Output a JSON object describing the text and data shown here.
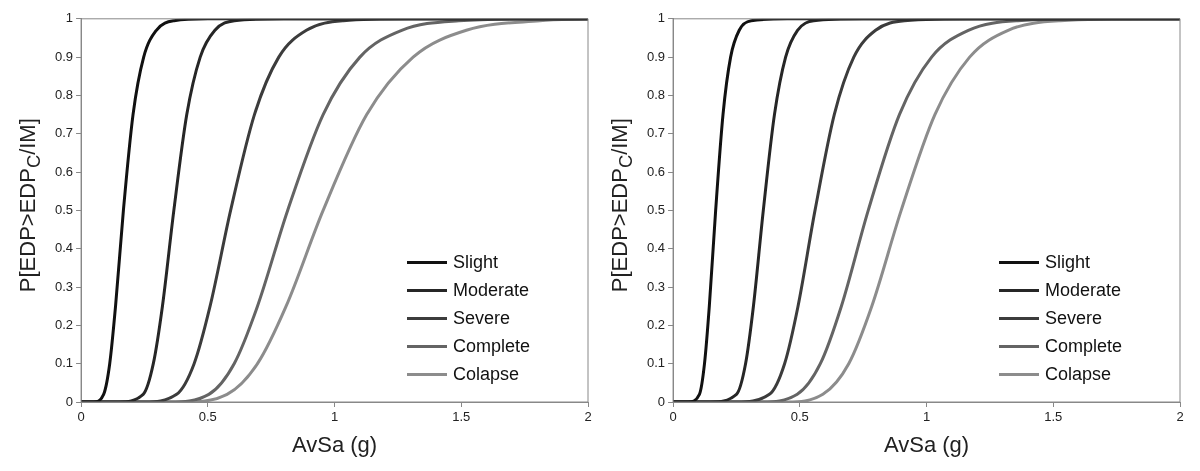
{
  "chart_data": [
    {
      "type": "line",
      "xlabel": "AvSa (g)",
      "ylabel": "P[EDP>EDP$_{C}$/IM]",
      "xlim": [
        0,
        2
      ],
      "ylim": [
        0,
        1
      ],
      "xticks": [
        0,
        0.5,
        1,
        1.5,
        2
      ],
      "yticks": [
        0,
        0.1,
        0.2,
        0.3,
        0.4,
        0.5,
        0.6,
        0.7,
        0.8,
        0.9,
        1
      ],
      "grid": false,
      "legend": "bottom right",
      "marker": "none",
      "line_style": "solid",
      "series": [
        {
          "name": "Slight",
          "color": "#111111",
          "x": [
            0,
            0.05,
            0.089,
            0.113,
            0.136,
            0.167,
            0.205,
            0.247,
            0.297,
            0.367,
            0.5,
            2
          ],
          "values": [
            0,
            0,
            0.02,
            0.1,
            0.25,
            0.5,
            0.75,
            0.9,
            0.97,
            0.995,
            1,
            1
          ]
        },
        {
          "name": "Moderate",
          "color": "#262626",
          "x": [
            0,
            0.15,
            0.245,
            0.285,
            0.321,
            0.366,
            0.417,
            0.47,
            0.528,
            0.605,
            0.8,
            2
          ],
          "values": [
            0,
            0,
            0.02,
            0.1,
            0.25,
            0.5,
            0.75,
            0.9,
            0.97,
            0.995,
            1,
            1
          ]
        },
        {
          "name": "Severe",
          "color": "#3c3c3c",
          "x": [
            0,
            0.25,
            0.377,
            0.446,
            0.509,
            0.59,
            0.684,
            0.78,
            0.889,
            1.035,
            1.3,
            2
          ],
          "values": [
            0,
            0,
            0.02,
            0.1,
            0.25,
            0.5,
            0.75,
            0.9,
            0.97,
            0.995,
            1,
            1
          ]
        },
        {
          "name": "Complete",
          "color": "#646464",
          "x": [
            0,
            0.35,
            0.504,
            0.604,
            0.696,
            0.815,
            0.955,
            1.1,
            1.265,
            1.49,
            1.8,
            2
          ],
          "values": [
            0,
            0,
            0.02,
            0.1,
            0.25,
            0.5,
            0.75,
            0.9,
            0.97,
            0.995,
            1,
            1
          ]
        },
        {
          "name": "Colapse",
          "color": "#8c8c8c",
          "x": [
            0,
            0.4,
            0.576,
            0.696,
            0.809,
            0.955,
            1.127,
            1.31,
            1.52,
            1.81,
            2
          ],
          "values": [
            0,
            0,
            0.02,
            0.1,
            0.25,
            0.5,
            0.75,
            0.9,
            0.97,
            0.995,
            1
          ]
        }
      ]
    },
    {
      "type": "line",
      "xlabel": "AvSa (g)",
      "ylabel": "P[EDP>EDP$_{C}$/IM]",
      "xlim": [
        0,
        2
      ],
      "ylim": [
        0,
        1
      ],
      "xticks": [
        0,
        0.5,
        1,
        1.5,
        2
      ],
      "yticks": [
        0,
        0.1,
        0.2,
        0.3,
        0.4,
        0.5,
        0.6,
        0.7,
        0.8,
        0.9,
        1
      ],
      "grid": false,
      "legend": "bottom right",
      "marker": "none",
      "line_style": "solid",
      "series": [
        {
          "name": "Slight",
          "color": "#111111",
          "x": [
            0,
            0.06,
            0.104,
            0.124,
            0.143,
            0.168,
            0.197,
            0.227,
            0.261,
            0.308,
            0.45,
            2
          ],
          "values": [
            0,
            0,
            0.02,
            0.1,
            0.25,
            0.5,
            0.75,
            0.9,
            0.97,
            0.995,
            1,
            1
          ]
        },
        {
          "name": "Moderate",
          "color": "#262626",
          "x": [
            0,
            0.15,
            0.25,
            0.286,
            0.317,
            0.356,
            0.4,
            0.444,
            0.491,
            0.555,
            0.75,
            2
          ],
          "values": [
            0,
            0,
            0.02,
            0.1,
            0.25,
            0.5,
            0.75,
            0.9,
            0.97,
            0.995,
            1,
            1
          ]
        },
        {
          "name": "Severe",
          "color": "#3c3c3c",
          "x": [
            0,
            0.25,
            0.38,
            0.44,
            0.493,
            0.56,
            0.636,
            0.713,
            0.799,
            0.913,
            1.2,
            2
          ],
          "values": [
            0,
            0,
            0.02,
            0.1,
            0.25,
            0.5,
            0.75,
            0.9,
            0.97,
            0.995,
            1,
            1
          ]
        },
        {
          "name": "Complete",
          "color": "#646464",
          "x": [
            0,
            0.35,
            0.49,
            0.581,
            0.664,
            0.77,
            0.893,
            1.02,
            1.165,
            1.36,
            1.7,
            2
          ],
          "values": [
            0,
            0,
            0.02,
            0.1,
            0.25,
            0.5,
            0.75,
            0.9,
            0.97,
            0.995,
            1,
            1
          ]
        },
        {
          "name": "Colapse",
          "color": "#8c8c8c",
          "x": [
            0,
            0.45,
            0.591,
            0.693,
            0.784,
            0.9,
            1.033,
            1.17,
            1.322,
            1.528,
            1.9,
            2
          ],
          "values": [
            0,
            0,
            0.02,
            0.1,
            0.25,
            0.5,
            0.75,
            0.9,
            0.97,
            0.995,
            1,
            1
          ]
        }
      ]
    }
  ]
}
